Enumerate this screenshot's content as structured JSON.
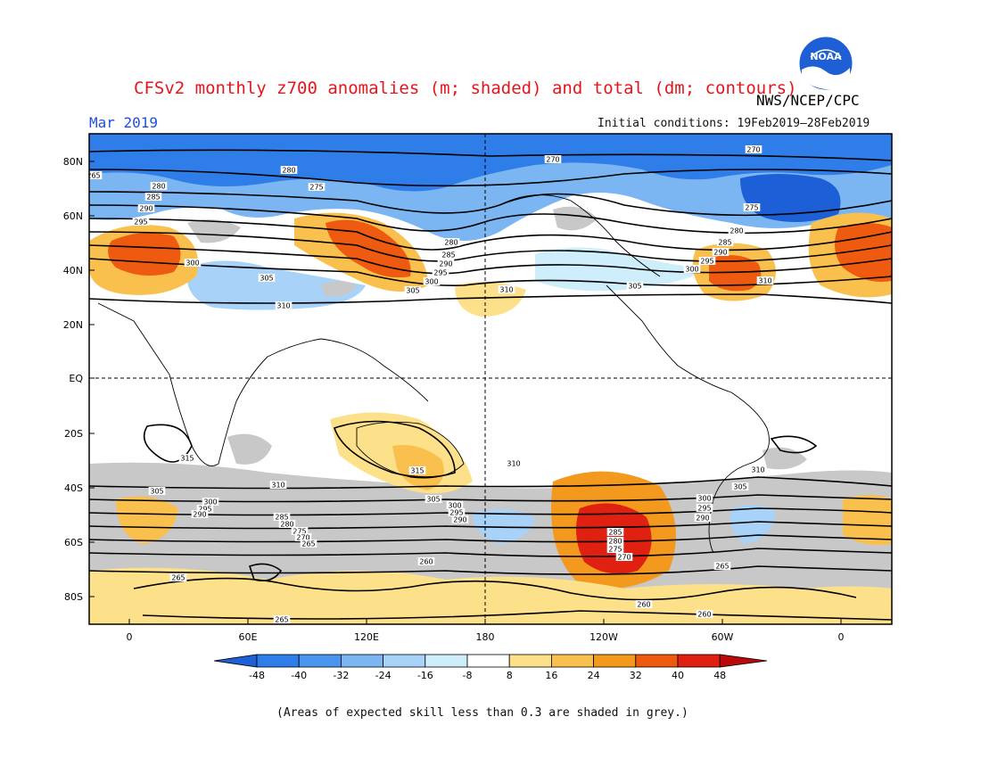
{
  "header": {
    "title": "CFSv2 monthly z700 anomalies (m; shaded) and total (dm; contours)",
    "agency": "NWS/NCEP/CPC",
    "month": "Mar 2019",
    "initial_conditions": "Initial conditions: 19Feb2019–28Feb2019",
    "logo_text": "NOAA"
  },
  "footer": {
    "note": "(Areas of expected skill less than 0.3 are shaded in grey.)"
  },
  "map": {
    "lat_ticks": [
      "80N",
      "60N",
      "40N",
      "20N",
      "EQ",
      "20S",
      "40S",
      "60S",
      "80S"
    ],
    "lon_ticks": [
      "0",
      "60E",
      "120E",
      "180",
      "120W",
      "60W",
      "0"
    ],
    "colorbar": {
      "labels": [
        "-48",
        "-40",
        "-32",
        "-24",
        "-16",
        "-8",
        "8",
        "16",
        "24",
        "32",
        "40",
        "48"
      ],
      "colors": [
        "#1d5fd6",
        "#2f7de8",
        "#4a96ee",
        "#7bb6f3",
        "#a9d2f8",
        "#cdeefa",
        "#ffffff",
        "#fde08a",
        "#f9c04e",
        "#f39a1e",
        "#ee5a0f",
        "#e02010",
        "#b80a0a"
      ]
    },
    "contour_labels": [
      "270",
      "275",
      "280",
      "285",
      "290",
      "295",
      "300",
      "305",
      "310",
      "315",
      "265",
      "260"
    ],
    "grey": "#c8c8c8"
  }
}
